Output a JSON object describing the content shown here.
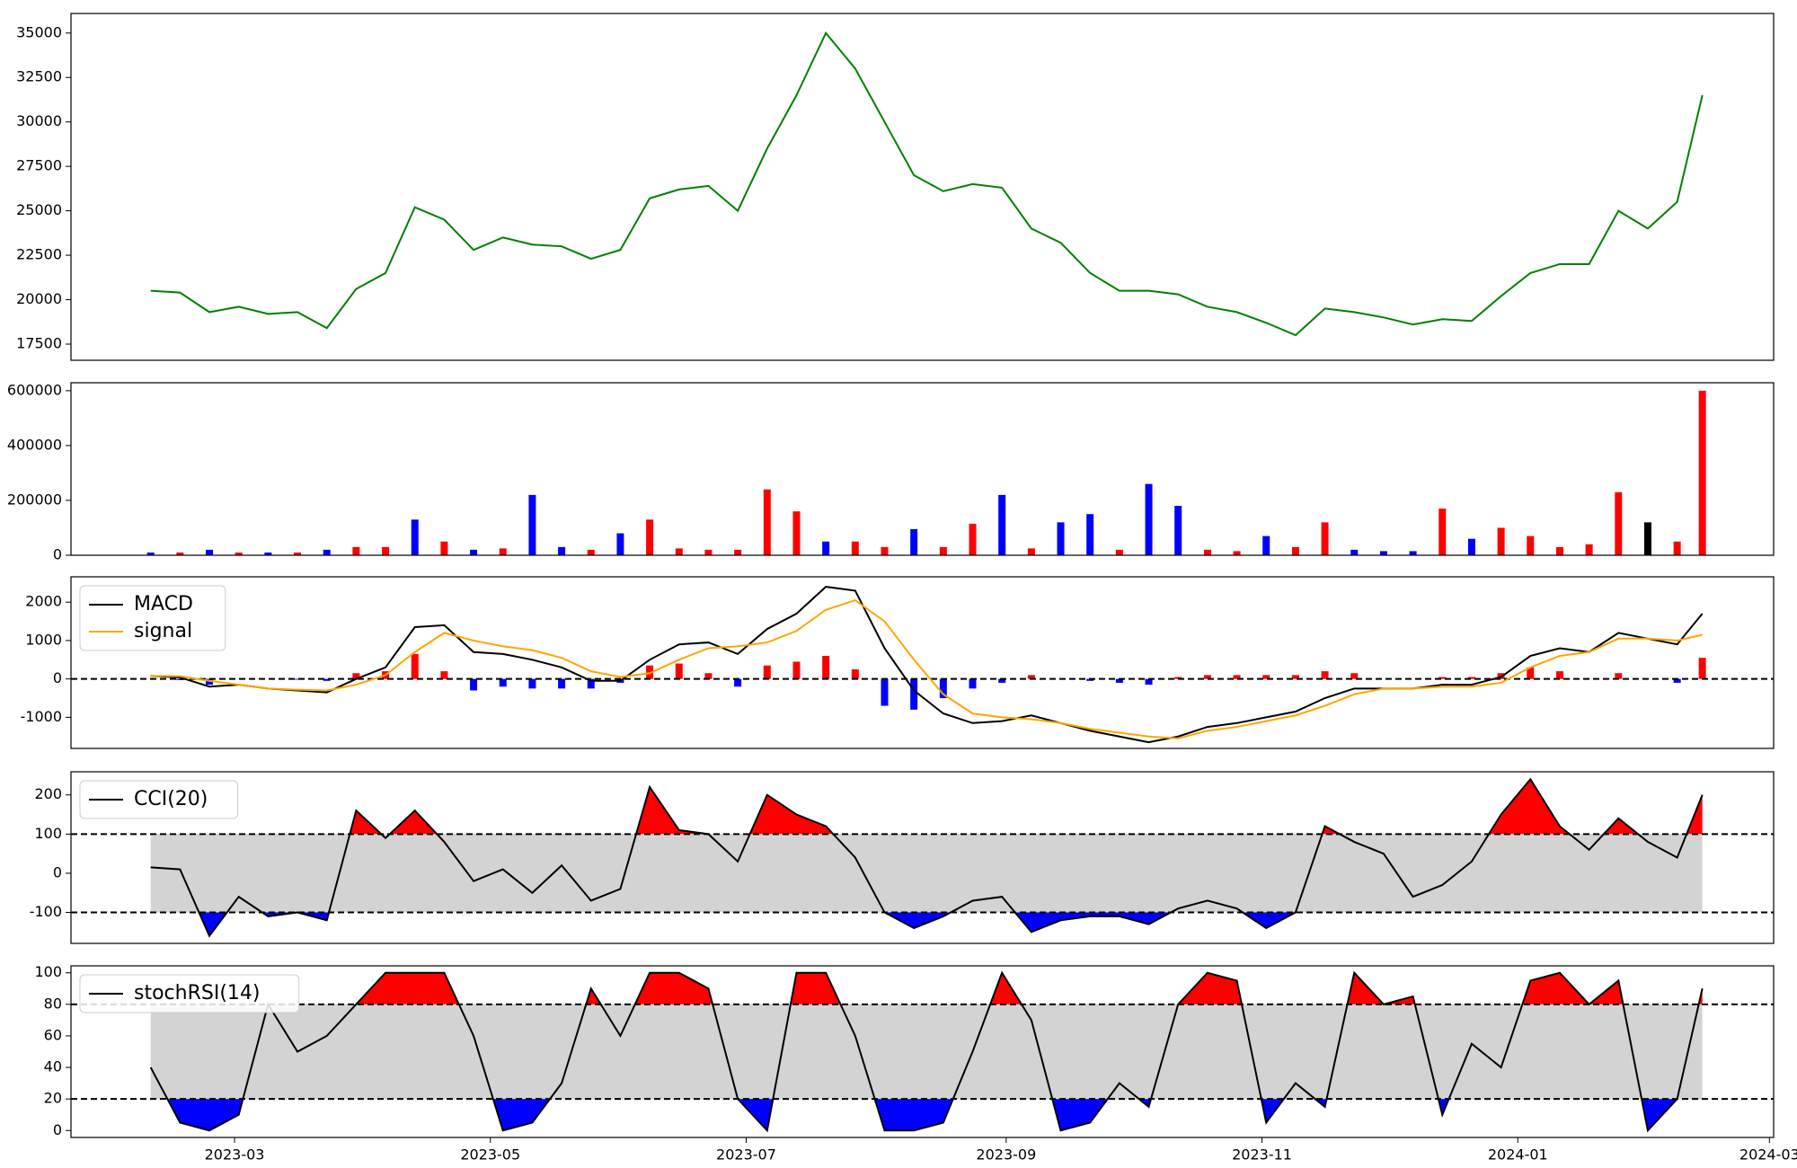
{
  "chart_data": [
    {
      "type": "line",
      "color": "green",
      "values": [
        20500,
        20400,
        19300,
        19600,
        19200,
        19300,
        18400,
        20600,
        21500,
        25200,
        24500,
        22800,
        23500,
        23100,
        23000,
        22300,
        22800,
        25700,
        26200,
        26400,
        25000,
        28500,
        31500,
        35000,
        33000,
        30000,
        27000,
        26100,
        26500,
        26300,
        24000,
        23200,
        21500,
        20500,
        20500,
        20300,
        19600,
        19300,
        18700,
        18000,
        19500,
        19300,
        19000,
        18600,
        18900,
        18800,
        20200,
        21500,
        22000,
        22000,
        25000,
        24000,
        25500,
        31500
      ],
      "ylim": [
        16590,
        36100
      ],
      "yticks": [
        17500,
        20000,
        22500,
        25000,
        27500,
        30000,
        32500,
        35000
      ]
    },
    {
      "type": "bar",
      "values": [
        10000,
        10000,
        20000,
        10000,
        10000,
        10000,
        20000,
        30000,
        30000,
        130000,
        50000,
        20000,
        25000,
        220000,
        30000,
        20000,
        80000,
        130000,
        25000,
        20000,
        20000,
        240000,
        160000,
        50000,
        50000,
        30000,
        95000,
        30000,
        115000,
        220000,
        25000,
        120000,
        150000,
        20000,
        260000,
        180000,
        20000,
        15000,
        70000,
        30000,
        120000,
        20000,
        15000,
        15000,
        170000,
        60000,
        100000,
        70000,
        30000,
        40000,
        230000,
        120000,
        50000,
        600000
      ],
      "colors": [
        "blue",
        "red",
        "blue",
        "red",
        "blue",
        "red",
        "blue",
        "red",
        "red",
        "blue",
        "red",
        "blue",
        "red",
        "blue",
        "blue",
        "red",
        "blue",
        "red",
        "red",
        "red",
        "red",
        "red",
        "red",
        "blue",
        "red",
        "red",
        "blue",
        "red",
        "red",
        "blue",
        "red",
        "blue",
        "blue",
        "red",
        "blue",
        "blue",
        "red",
        "red",
        "blue",
        "red",
        "red",
        "blue",
        "blue",
        "blue",
        "red",
        "blue",
        "red",
        "red",
        "red",
        "red",
        "red",
        "black",
        "red",
        "red"
      ],
      "ylim": [
        0,
        629000
      ],
      "yticks": [
        0,
        200000,
        400000,
        600000
      ]
    },
    {
      "type": "line",
      "series": [
        {
          "name": "MACD",
          "color": "black",
          "values": [
            80,
            40,
            -200,
            -150,
            -250,
            -300,
            -350,
            0,
            300,
            1350,
            1400,
            700,
            650,
            500,
            300,
            -50,
            -50,
            500,
            900,
            950,
            650,
            1300,
            1700,
            2400,
            2300,
            800,
            -300,
            -900,
            -1150,
            -1100,
            -950,
            -1150,
            -1350,
            -1500,
            -1650,
            -1500,
            -1250,
            -1150,
            -1000,
            -850,
            -500,
            -250,
            -250,
            -250,
            -150,
            -150,
            50,
            600,
            800,
            700,
            1200,
            1050,
            900,
            1700
          ]
        },
        {
          "name": "signal",
          "color": "orange",
          "values": [
            80,
            70,
            -50,
            -150,
            -250,
            -280,
            -300,
            -150,
            100,
            700,
            1200,
            1000,
            850,
            750,
            550,
            200,
            50,
            150,
            500,
            800,
            850,
            950,
            1250,
            1800,
            2050,
            1500,
            500,
            -400,
            -900,
            -1000,
            -1050,
            -1150,
            -1300,
            -1400,
            -1500,
            -1550,
            -1350,
            -1250,
            -1100,
            -950,
            -700,
            -400,
            -250,
            -250,
            -200,
            -200,
            -100,
            300,
            600,
            700,
            1050,
            1050,
            1000,
            1150
          ]
        }
      ],
      "bars": {
        "values": [
          0,
          -30,
          -150,
          0,
          0,
          -20,
          -50,
          150,
          200,
          650,
          200,
          -300,
          -200,
          -250,
          -250,
          -250,
          -100,
          350,
          400,
          150,
          -200,
          350,
          450,
          600,
          250,
          -700,
          -800,
          -500,
          -250,
          -100,
          100,
          0,
          -50,
          -100,
          -150,
          50,
          100,
          100,
          100,
          100,
          200,
          150,
          0,
          0,
          50,
          50,
          150,
          300,
          200,
          0,
          150,
          0,
          -100,
          550
        ],
        "positive_color": "red",
        "negative_color": "blue"
      },
      "hlines": [
        0
      ],
      "ylim": [
        -1810,
        2660
      ],
      "yticks": [
        -1000,
        0,
        1000,
        2000
      ]
    },
    {
      "type": "line",
      "series": [
        {
          "name": "CCI(20)",
          "color": "black",
          "values": [
            15,
            10,
            -160,
            -60,
            -110,
            -100,
            -120,
            160,
            90,
            160,
            80,
            -20,
            10,
            -50,
            20,
            -70,
            -40,
            220,
            110,
            100,
            30,
            200,
            150,
            120,
            40,
            -100,
            -140,
            -110,
            -70,
            -60,
            -150,
            -120,
            -110,
            -110,
            -130,
            -90,
            -70,
            -90,
            -140,
            -100,
            120,
            80,
            50,
            -60,
            -30,
            30,
            150,
            240,
            120,
            60,
            140,
            80,
            40,
            200
          ]
        }
      ],
      "band": [
        -100,
        100
      ],
      "hlines": [
        100,
        -100
      ],
      "fill_above": {
        "level": 100,
        "color": "red"
      },
      "fill_below": {
        "level": -100,
        "color": "blue"
      },
      "ylim": [
        -179,
        259
      ],
      "yticks": [
        -100,
        0,
        100,
        200
      ]
    },
    {
      "type": "line",
      "series": [
        {
          "name": "stochRSI(14)",
          "color": "black",
          "values": [
            40,
            5,
            0,
            10,
            80,
            50,
            60,
            80,
            100,
            100,
            100,
            60,
            0,
            5,
            30,
            90,
            60,
            100,
            100,
            90,
            20,
            0,
            100,
            100,
            60,
            0,
            0,
            5,
            50,
            100,
            70,
            0,
            5,
            30,
            15,
            80,
            100,
            95,
            5,
            30,
            15,
            100,
            80,
            85,
            10,
            55,
            40,
            95,
            100,
            80,
            95,
            0,
            20,
            90
          ]
        }
      ],
      "band": [
        20,
        80
      ],
      "hlines": [
        80,
        20
      ],
      "fill_above": {
        "level": 80,
        "color": "red"
      },
      "fill_below": {
        "level": 20,
        "color": "blue"
      },
      "ylim": [
        -4.4,
        104.4
      ],
      "yticks": [
        0,
        20,
        40,
        60,
        80,
        100
      ],
      "x": [
        "2023-02-09",
        "2023-02-16",
        "2023-02-23",
        "2023-03-02",
        "2023-03-09",
        "2023-03-16",
        "2023-03-23",
        "2023-03-30",
        "2023-04-06",
        "2023-04-13",
        "2023-04-20",
        "2023-04-27",
        "2023-05-04",
        "2023-05-11",
        "2023-05-18",
        "2023-05-25",
        "2023-06-01",
        "2023-06-08",
        "2023-06-15",
        "2023-06-22",
        "2023-06-29",
        "2023-07-06",
        "2023-07-13",
        "2023-07-20",
        "2023-07-27",
        "2023-08-03",
        "2023-08-10",
        "2023-08-17",
        "2023-08-24",
        "2023-08-31",
        "2023-09-07",
        "2023-09-14",
        "2023-09-21",
        "2023-09-28",
        "2023-10-05",
        "2023-10-12",
        "2023-10-19",
        "2023-10-26",
        "2023-11-02",
        "2023-11-09",
        "2023-11-16",
        "2023-11-23",
        "2023-11-30",
        "2023-12-07",
        "2023-12-14",
        "2023-12-21",
        "2023-12-28",
        "2024-01-04",
        "2024-01-11",
        "2024-01-18",
        "2024-01-25",
        "2024-02-01",
        "2024-02-08",
        "2024-02-14"
      ],
      "xlim": [
        "2023-01-21",
        "2024-03-02"
      ],
      "xticks": [
        {
          "value": "2023-03-01",
          "label": "2023-03"
        },
        {
          "value": "2023-05-01",
          "label": "2023-05"
        },
        {
          "value": "2023-07-01",
          "label": "2023-07"
        },
        {
          "value": "2023-09-01",
          "label": "2023-09"
        },
        {
          "value": "2023-11-01",
          "label": "2023-11"
        },
        {
          "value": "2024-01-01",
          "label": "2024-01"
        },
        {
          "value": "2024-03-01",
          "label": "2024-03"
        }
      ]
    }
  ]
}
